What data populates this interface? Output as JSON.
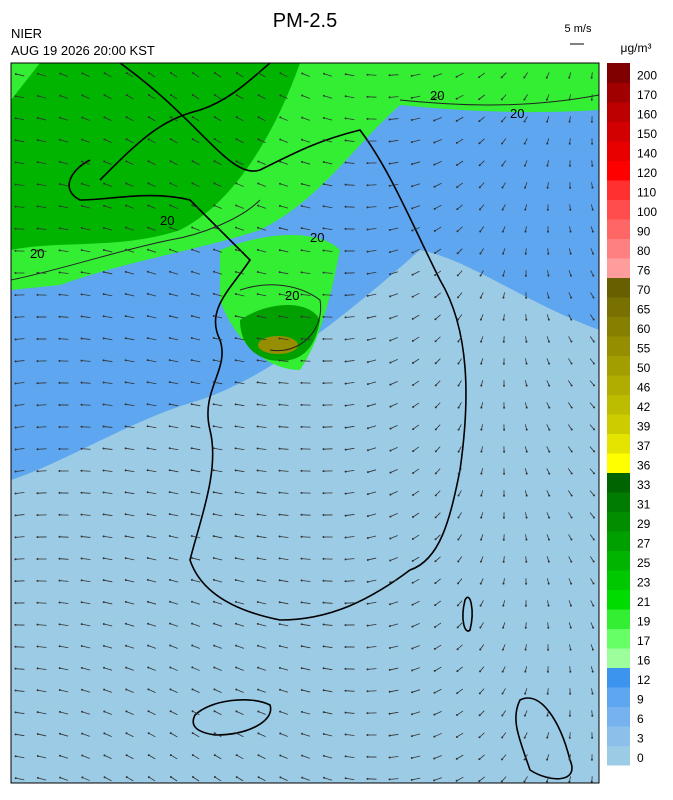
{
  "header": {
    "title": "PM-2.5",
    "agency": "NIER",
    "timestamp": "AUG 19 2026 20:00 KST",
    "wind_scale": "5 m/s",
    "unit": "μg/m³"
  },
  "colorbar": [
    {
      "label": "0",
      "color": "#9ccbe6"
    },
    {
      "label": "3",
      "color": "#8cc0ea"
    },
    {
      "label": "6",
      "color": "#76b3ee"
    },
    {
      "label": "9",
      "color": "#5ea6f0"
    },
    {
      "label": "12",
      "color": "#3d94ef"
    },
    {
      "label": "16",
      "color": "#9cff9c"
    },
    {
      "label": "17",
      "color": "#66ff66"
    },
    {
      "label": "19",
      "color": "#33ee33"
    },
    {
      "label": "21",
      "color": "#00dc00"
    },
    {
      "label": "23",
      "color": "#00c800"
    },
    {
      "label": "25",
      "color": "#00b400"
    },
    {
      "label": "27",
      "color": "#00a000"
    },
    {
      "label": "29",
      "color": "#008e00"
    },
    {
      "label": "31",
      "color": "#007c00"
    },
    {
      "label": "33",
      "color": "#006400"
    },
    {
      "label": "36",
      "color": "#ffff00"
    },
    {
      "label": "37",
      "color": "#e4e400"
    },
    {
      "label": "39",
      "color": "#cccc00"
    },
    {
      "label": "42",
      "color": "#bcbc00"
    },
    {
      "label": "46",
      "color": "#b0ac00"
    },
    {
      "label": "50",
      "color": "#a29e00"
    },
    {
      "label": "55",
      "color": "#948e00"
    },
    {
      "label": "60",
      "color": "#868000"
    },
    {
      "label": "65",
      "color": "#787000"
    },
    {
      "label": "70",
      "color": "#686000"
    },
    {
      "label": "76",
      "color": "#ff9c9c"
    },
    {
      "label": "80",
      "color": "#ff8080"
    },
    {
      "label": "90",
      "color": "#ff6666"
    },
    {
      "label": "100",
      "color": "#ff4c4c"
    },
    {
      "label": "110",
      "color": "#ff3030"
    },
    {
      "label": "120",
      "color": "#ff0000"
    },
    {
      "label": "140",
      "color": "#e80000"
    },
    {
      "label": "150",
      "color": "#d20000"
    },
    {
      "label": "160",
      "color": "#bc0000"
    },
    {
      "label": "170",
      "color": "#a00000"
    },
    {
      "label": "200",
      "color": "#800000"
    }
  ],
  "map": {
    "contour_labels": [
      "20",
      "20",
      "20",
      "20",
      "20",
      "20"
    ]
  }
}
